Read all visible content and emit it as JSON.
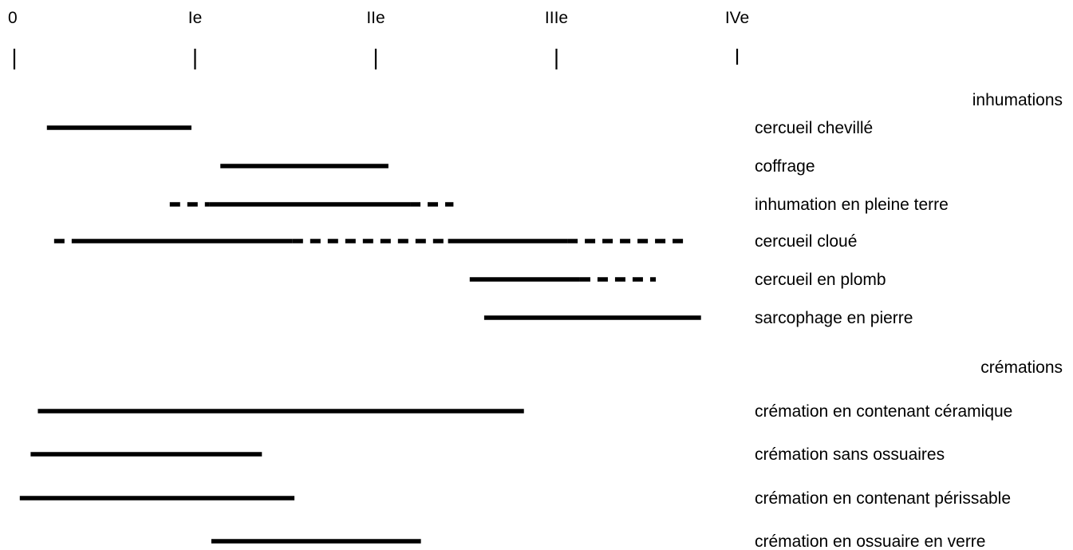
{
  "chart_data": {
    "type": "timeline",
    "x_range": [
      0,
      400
    ],
    "axis_ticks": [
      {
        "value": 0,
        "label": "0"
      },
      {
        "value": 100,
        "label": "Ie"
      },
      {
        "value": 200,
        "label": "IIe"
      },
      {
        "value": 300,
        "label": "IIIe"
      },
      {
        "value": 400,
        "label": "IVe"
      }
    ],
    "groups": [
      {
        "label": "inhumations",
        "rows": [
          {
            "label": "cercueil chevillé",
            "segments": [
              {
                "from": 18,
                "to": 98,
                "style": "solid"
              }
            ]
          },
          {
            "label": "coffrage",
            "segments": [
              {
                "from": 114,
                "to": 207,
                "style": "solid"
              }
            ]
          },
          {
            "label": "inhumation en pleine terre",
            "segments": [
              {
                "from": 86,
                "to": 108,
                "style": "dashed"
              },
              {
                "from": 108,
                "to": 219,
                "style": "solid"
              },
              {
                "from": 219,
                "to": 243,
                "style": "dashed"
              }
            ]
          },
          {
            "label": "cercueil cloué",
            "segments": [
              {
                "from": 22,
                "to": 32,
                "style": "dashed"
              },
              {
                "from": 32,
                "to": 154,
                "style": "solid"
              },
              {
                "from": 154,
                "to": 240,
                "style": "dashed"
              },
              {
                "from": 240,
                "to": 306,
                "style": "solid"
              },
              {
                "from": 306,
                "to": 372,
                "style": "dashed"
              }
            ]
          },
          {
            "label": "cercueil en plomb",
            "segments": [
              {
                "from": 252,
                "to": 313,
                "style": "solid"
              },
              {
                "from": 313,
                "to": 355,
                "style": "dashed"
              }
            ]
          },
          {
            "label": "sarcophage en pierre",
            "segments": [
              {
                "from": 260,
                "to": 380,
                "style": "solid"
              }
            ]
          }
        ]
      },
      {
        "label": "crémations",
        "rows": [
          {
            "label": "crémation en contenant céramique",
            "segments": [
              {
                "from": 13,
                "to": 282,
                "style": "solid"
              }
            ]
          },
          {
            "label": "crémation sans ossuaires",
            "segments": [
              {
                "from": 9,
                "to": 137,
                "style": "solid"
              }
            ]
          },
          {
            "label": "crémation en contenant périssable",
            "segments": [
              {
                "from": 3,
                "to": 155,
                "style": "solid"
              }
            ]
          },
          {
            "label": "crémation en ossuaire en verre",
            "segments": [
              {
                "from": 109,
                "to": 225,
                "style": "solid"
              }
            ]
          }
        ]
      }
    ]
  }
}
